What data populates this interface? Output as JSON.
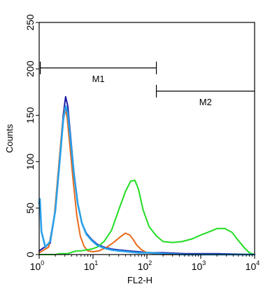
{
  "chart_data": {
    "type": "line",
    "title": "",
    "xlabel": "FL2-H",
    "ylabel": "Counts",
    "x_scale": "log",
    "xlim": [
      1,
      10000
    ],
    "ylim": [
      0,
      250
    ],
    "x_ticks": [
      {
        "value": 1,
        "base": "10",
        "exp": "0"
      },
      {
        "value": 10,
        "base": "10",
        "exp": "1"
      },
      {
        "value": 100,
        "base": "10",
        "exp": "2"
      },
      {
        "value": 1000,
        "base": "10",
        "exp": "3"
      },
      {
        "value": 10000,
        "base": "10",
        "exp": "4"
      }
    ],
    "y_ticks": [
      0,
      50,
      100,
      150,
      200,
      250
    ],
    "grid": false,
    "legend": "none",
    "markers": [
      {
        "label": "M1",
        "start": 1.05,
        "end": 150,
        "y": 201
      },
      {
        "label": "M2",
        "start": 150,
        "end": 10000,
        "y": 176
      }
    ],
    "series": [
      {
        "color": "#1a1aa8",
        "x": [
          1.0,
          1.6,
          2.0,
          2.4,
          2.8,
          3.1,
          3.4,
          3.8,
          4.4,
          5.2,
          6.2,
          7.5,
          9.5,
          12,
          16,
          22,
          30,
          45,
          70,
          110,
          200,
          500,
          2000,
          10000
        ],
        "y": [
          4,
          12,
          48,
          105,
          150,
          170,
          160,
          130,
          90,
          55,
          34,
          23,
          16,
          11,
          8,
          6,
          5,
          4,
          3,
          2,
          2,
          1,
          1,
          0
        ]
      },
      {
        "color": "#e86a1c",
        "x": [
          1.0,
          1.5,
          1.9,
          2.3,
          2.7,
          3.0,
          3.3,
          3.7,
          4.3,
          5.0,
          5.8,
          6.8,
          8.0,
          10,
          13,
          18,
          24,
          32,
          40,
          48,
          56,
          65,
          80,
          100,
          140,
          200,
          500,
          2000,
          10000
        ],
        "y": [
          2,
          8,
          40,
          95,
          140,
          158,
          148,
          118,
          78,
          42,
          20,
          9,
          4,
          3,
          4,
          8,
          13,
          19,
          23,
          21,
          16,
          10,
          5,
          2,
          1,
          0,
          0,
          0,
          0
        ]
      },
      {
        "color": "#22dd22",
        "x": [
          1.0,
          1.6,
          2.0,
          2.4,
          2.8,
          3.1,
          3.4,
          3.8,
          4.3,
          5.0,
          6.0,
          7.5,
          9.5,
          12,
          16,
          22,
          30,
          40,
          50,
          60,
          70,
          85,
          110,
          150,
          200,
          300,
          450,
          700,
          1000,
          1500,
          2000,
          2800,
          3800,
          5000,
          6500,
          8000,
          10000
        ],
        "y": [
          0,
          0,
          0,
          1,
          1,
          1,
          1,
          2,
          3,
          4,
          4,
          5,
          6,
          8,
          14,
          26,
          48,
          68,
          79,
          80,
          70,
          48,
          30,
          20,
          14,
          13,
          14,
          17,
          21,
          25,
          28,
          28,
          24,
          15,
          7,
          2,
          0
        ]
      },
      {
        "color": "#2aa0e8",
        "x": [
          1.0,
          1.03,
          1.1,
          1.3,
          1.6,
          2.0,
          2.4,
          2.8,
          3.1,
          3.4,
          3.8,
          4.4,
          5.2,
          6.2,
          7.5,
          9.5,
          12,
          16,
          22,
          30,
          45,
          70,
          110,
          200,
          500,
          2000,
          10000
        ],
        "y": [
          55,
          60,
          25,
          8,
          14,
          48,
          100,
          145,
          160,
          152,
          125,
          88,
          55,
          34,
          22,
          15,
          10,
          7,
          5,
          4,
          3,
          2,
          2,
          1,
          0,
          0,
          0
        ]
      }
    ]
  }
}
